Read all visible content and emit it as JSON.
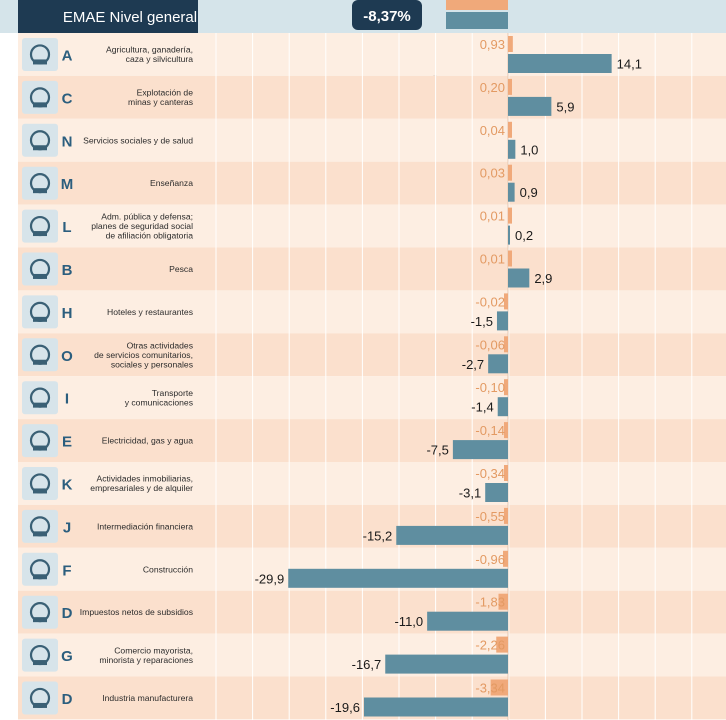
{
  "header": {
    "title": "EMAE Nivel general",
    "total": "-8,37%"
  },
  "colors": {
    "header_bg": "#1e3a52",
    "header_band": "#d5e4ea",
    "row_even": "#fdeee2",
    "row_odd": "#fbe0cd",
    "contribution_bar": "#f0a97a",
    "variation_bar": "#5f8ea0",
    "contribution_text": "#e39a63",
    "letter_text": "#2b5e7e",
    "label_text": "#2c2c2c",
    "icon_bg": "#d7e4ea",
    "icon_fg": "#3a6075"
  },
  "chart_data": {
    "type": "bar",
    "orientation": "horizontal",
    "title": "EMAE Nivel general",
    "total_variation": "-8,37%",
    "categories": [
      {
        "code": "A",
        "label": [
          "Agricultura, ganadería,",
          "caza y silvicultura"
        ],
        "icon": "tractor-icon"
      },
      {
        "code": "C",
        "label": [
          "Explotación de",
          "minas y canteras"
        ],
        "icon": "mining-icon"
      },
      {
        "code": "N",
        "label": [
          "Servicios sociales y de salud"
        ],
        "icon": "health-icon"
      },
      {
        "code": "M",
        "label": [
          "Enseñanza"
        ],
        "icon": "school-icon"
      },
      {
        "code": "L",
        "label": [
          "Adm. pública y defensa;",
          "planes de seguridad social",
          "de afiliación obligatoria"
        ],
        "icon": "government-icon"
      },
      {
        "code": "B",
        "label": [
          "Pesca"
        ],
        "icon": "fishing-boat-icon"
      },
      {
        "code": "H",
        "label": [
          "Hoteles y restaurantes"
        ],
        "icon": "hotel-icon"
      },
      {
        "code": "O",
        "label": [
          "Otras actividades",
          "de servicios comunitarios,",
          "sociales y personales"
        ],
        "icon": "community-services-icon"
      },
      {
        "code": "I",
        "label": [
          "Transporte",
          "y comunicaciones"
        ],
        "icon": "transport-icon"
      },
      {
        "code": "E",
        "label": [
          "Electricidad, gas y agua"
        ],
        "icon": "utilities-icon"
      },
      {
        "code": "K",
        "label": [
          "Actividades inmobiliarias,",
          "empresariales y de alquiler"
        ],
        "icon": "real-estate-icon"
      },
      {
        "code": "J",
        "label": [
          "Intermediación financiera"
        ],
        "icon": "finance-gears-icon"
      },
      {
        "code": "F",
        "label": [
          "Construcción"
        ],
        "icon": "construction-icon"
      },
      {
        "code": "D",
        "label": [
          "Impuestos netos de subsidios"
        ],
        "icon": "taxes-icon"
      },
      {
        "code": "G",
        "label": [
          "Comercio mayorista,",
          "minorista y reparaciones"
        ],
        "icon": "commerce-icon"
      },
      {
        "code": "D",
        "label": [
          "Industria manufacturera"
        ],
        "icon": "factory-icon"
      }
    ],
    "series": [
      {
        "key": "contribution",
        "values": [
          0.93,
          0.2,
          0.04,
          0.03,
          0.01,
          0.01,
          -0.02,
          -0.06,
          -0.1,
          -0.14,
          -0.34,
          -0.55,
          -0.96,
          -1.83,
          -2.26,
          -3.34
        ],
        "labels": [
          "0,93",
          "0,20",
          "0,04",
          "0,03",
          "0,01",
          "0,01",
          "-0,02",
          "-0,06",
          "-0,10",
          "-0,14",
          "-0,34",
          "-0,55",
          "-0,96",
          "-1,83",
          "-2,26",
          "-3,34"
        ]
      },
      {
        "key": "variation",
        "values": [
          14.1,
          5.9,
          1.0,
          0.9,
          0.2,
          2.9,
          -1.5,
          -2.7,
          -1.4,
          -7.5,
          -3.1,
          -15.2,
          -29.9,
          -11.0,
          -16.7,
          -19.6
        ],
        "labels": [
          "14,1",
          "5,9",
          "1,0",
          "0,9",
          "0,2",
          "2,9",
          "-1,5",
          "-2,7",
          "-1,4",
          "-7,5",
          "-3,1",
          "-15,2",
          "-29,9",
          "-11,0",
          "-16,7",
          "-19,6"
        ]
      }
    ],
    "grid": true
  }
}
